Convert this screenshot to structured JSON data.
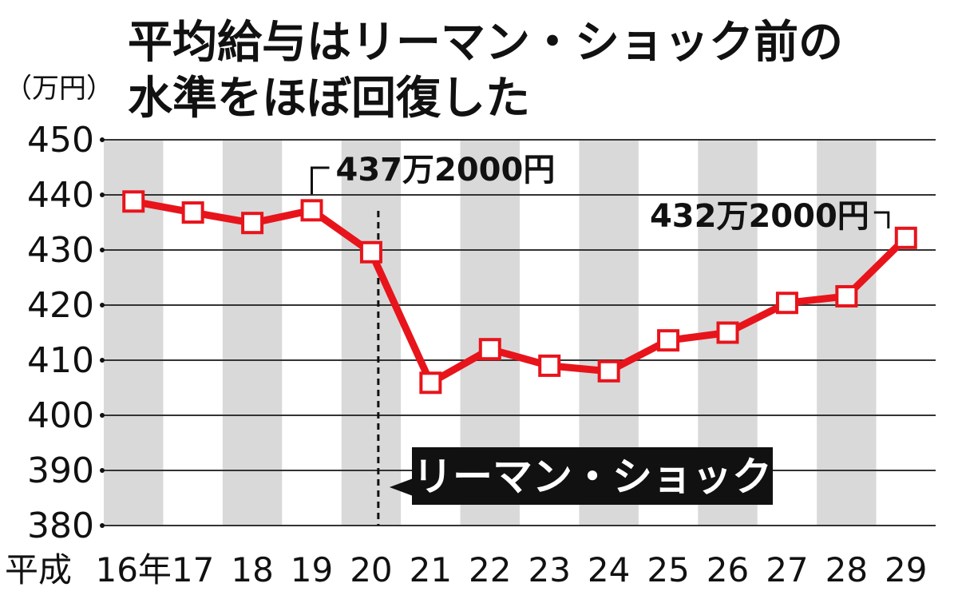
{
  "chart_data": {
    "type": "line",
    "title": [
      "平均給与はリーマン・ショック前の",
      "水準をほぼ回復した"
    ],
    "unit_label": "（万円）",
    "x_prefix": "平成",
    "categories": [
      "16年",
      "17",
      "18",
      "19",
      "20",
      "21",
      "22",
      "23",
      "24",
      "25",
      "26",
      "27",
      "28",
      "29"
    ],
    "values": [
      438.8,
      436.8,
      434.9,
      437.2,
      429.6,
      405.9,
      412.0,
      409.0,
      408.0,
      413.6,
      415.0,
      420.4,
      421.6,
      432.2
    ],
    "ylim": [
      380,
      450
    ],
    "yticks": [
      380,
      390,
      400,
      410,
      420,
      430,
      440,
      450
    ],
    "grid": true,
    "annotations": [
      {
        "label": "437万2000円",
        "category": "19",
        "value": 437.2
      },
      {
        "label": "432万2000円",
        "category": "29",
        "value": 432.2
      }
    ],
    "event": {
      "label": "リーマン・ショック",
      "category": "20"
    },
    "colors": {
      "line": "#e8141b",
      "band": "#d9d9d9",
      "grid": "#333333",
      "text": "#111111",
      "event_bg": "#111111"
    }
  }
}
